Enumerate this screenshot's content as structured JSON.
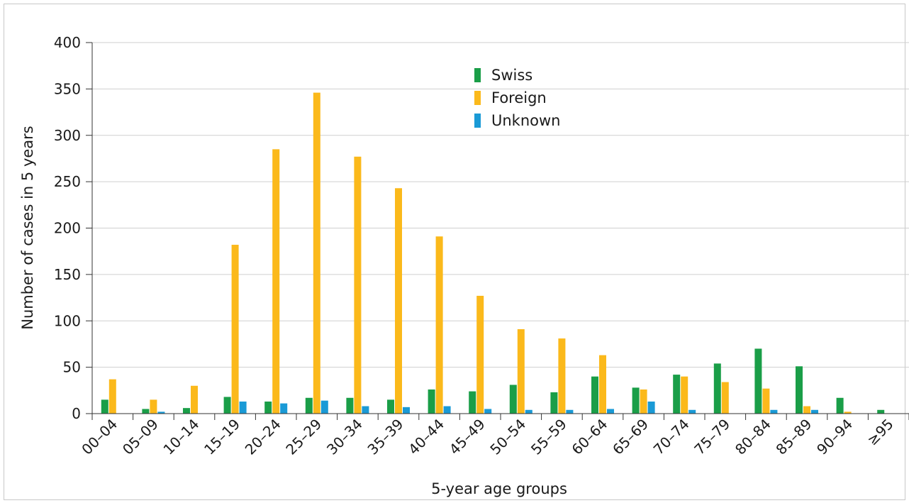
{
  "chart_data": {
    "type": "bar",
    "xlabel": "5-year age groups",
    "ylabel": "Number of cases in 5 years",
    "ylim": [
      0,
      400
    ],
    "yticks": [
      0,
      50,
      100,
      150,
      200,
      250,
      300,
      350,
      400
    ],
    "grid": "horizontal",
    "legend_position": "top-center",
    "categories": [
      "00–04",
      "05–09",
      "10–14",
      "15–19",
      "20–24",
      "25–29",
      "30–34",
      "35–39",
      "40–44",
      "45–49",
      "50–54",
      "55–59",
      "60–64",
      "65–69",
      "70–74",
      "75–79",
      "80–84",
      "85–89",
      "90–94",
      "≥95"
    ],
    "series": [
      {
        "name": "Swiss",
        "color": "#1a9e48",
        "values": [
          15,
          5,
          6,
          18,
          13,
          17,
          17,
          15,
          26,
          24,
          31,
          23,
          40,
          28,
          42,
          54,
          70,
          51,
          17,
          4
        ]
      },
      {
        "name": "Foreign",
        "color": "#fbb91b",
        "values": [
          37,
          15,
          30,
          182,
          285,
          346,
          277,
          243,
          191,
          127,
          91,
          81,
          63,
          26,
          40,
          34,
          27,
          8,
          2,
          0
        ]
      },
      {
        "name": "Unknown",
        "color": "#1a9ad6",
        "values": [
          0,
          2,
          0,
          13,
          11,
          14,
          8,
          7,
          8,
          5,
          4,
          4,
          5,
          13,
          4,
          0,
          4,
          4,
          0,
          0
        ]
      }
    ]
  }
}
